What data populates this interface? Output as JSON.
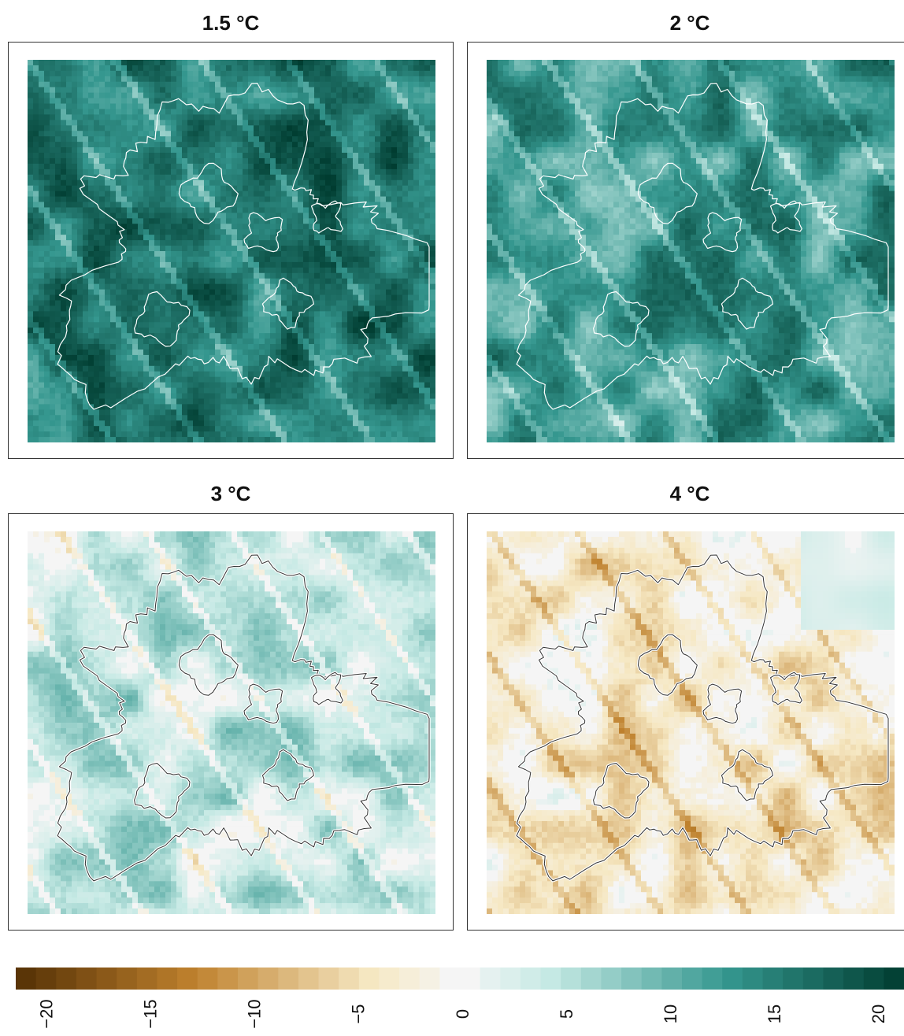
{
  "panels": [
    {
      "title": "1.5 °C",
      "mean": 15,
      "outline": "#ffffff",
      "halo": "#0a2e2a"
    },
    {
      "title": "2 °C",
      "mean": 12,
      "outline": "#ffffff",
      "halo": "#0a2e2a"
    },
    {
      "title": "3 °C",
      "mean": 4,
      "outline": "#333333",
      "halo": "#ffffff"
    },
    {
      "title": "4 °C",
      "mean": -3,
      "outline": "#333333",
      "halo": "#ffffff"
    }
  ],
  "legend": {
    "ticks": [
      "−20",
      "−15",
      "−10",
      "−5",
      "0",
      "5",
      "10",
      "15",
      "20"
    ],
    "range": [
      -20,
      20
    ],
    "colors": {
      "strong_negative": "#543005",
      "mid_negative": "#bf812d",
      "weak_negative": "#f6e8c3",
      "neutral": "#f5f5f5",
      "weak_positive": "#c7eae5",
      "mid_positive": "#35978f",
      "strong_positive": "#003c30"
    }
  }
}
